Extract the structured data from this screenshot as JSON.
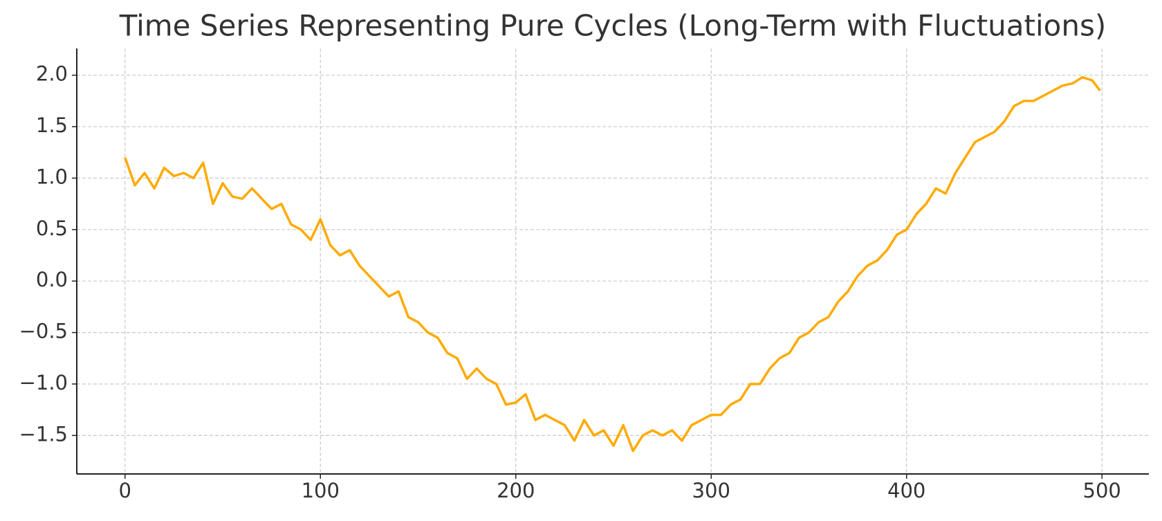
{
  "chart_data": {
    "type": "line",
    "title": "Time Series Representing Pure Cycles (Long-Term with Fluctuations)",
    "x": [
      0,
      5,
      10,
      15,
      20,
      25,
      30,
      35,
      40,
      45,
      50,
      55,
      60,
      65,
      70,
      75,
      80,
      85,
      90,
      95,
      100,
      105,
      110,
      115,
      120,
      125,
      130,
      135,
      140,
      145,
      150,
      155,
      160,
      165,
      170,
      175,
      180,
      185,
      190,
      195,
      200,
      205,
      210,
      215,
      220,
      225,
      230,
      235,
      240,
      245,
      250,
      255,
      260,
      265,
      270,
      275,
      280,
      285,
      290,
      295,
      300,
      305,
      310,
      315,
      320,
      325,
      330,
      335,
      340,
      345,
      350,
      355,
      360,
      365,
      370,
      375,
      380,
      385,
      390,
      395,
      400,
      405,
      410,
      415,
      420,
      425,
      430,
      435,
      440,
      445,
      450,
      455,
      460,
      465,
      470,
      475,
      480,
      485,
      490,
      495,
      499
    ],
    "series": [
      {
        "color": "#ffaa00",
        "values": [
          1.2,
          0.93,
          1.05,
          0.9,
          1.1,
          1.02,
          1.05,
          1.0,
          1.15,
          0.75,
          0.95,
          0.82,
          0.8,
          0.9,
          0.8,
          0.7,
          0.75,
          0.55,
          0.5,
          0.4,
          0.6,
          0.35,
          0.25,
          0.3,
          0.15,
          0.05,
          -0.05,
          -0.15,
          -0.1,
          -0.35,
          -0.4,
          -0.5,
          -0.55,
          -0.7,
          -0.75,
          -0.95,
          -0.85,
          -0.95,
          -1.0,
          -1.2,
          -1.18,
          -1.1,
          -1.35,
          -1.3,
          -1.35,
          -1.4,
          -1.55,
          -1.35,
          -1.5,
          -1.45,
          -1.6,
          -1.4,
          -1.65,
          -1.5,
          -1.45,
          -1.5,
          -1.45,
          -1.55,
          -1.4,
          -1.35,
          -1.3,
          -1.3,
          -1.2,
          -1.15,
          -1.0,
          -1.0,
          -0.85,
          -0.75,
          -0.7,
          -0.55,
          -0.5,
          -0.4,
          -0.35,
          -0.2,
          -0.1,
          0.05,
          0.15,
          0.2,
          0.3,
          0.45,
          0.5,
          0.65,
          0.75,
          0.9,
          0.85,
          1.05,
          1.2,
          1.35,
          1.4,
          1.45,
          1.55,
          1.7,
          1.75,
          1.75,
          1.8,
          1.85,
          1.9,
          1.92,
          1.98,
          1.95,
          1.85
        ]
      }
    ],
    "xlim": [
      -24.7,
      524
    ],
    "ylim": [
      -1.874,
      2.26
    ],
    "xticks": [
      0,
      100,
      200,
      300,
      400,
      500
    ],
    "yticks": [
      {
        "value": -1.5,
        "label": "−1.5"
      },
      {
        "value": -1,
        "label": "−1.0"
      },
      {
        "value": -0.5,
        "label": "−0.5"
      },
      {
        "value": 0,
        "label": "0.0"
      },
      0.5,
      {
        "value": 1,
        "label": "1.0"
      },
      1.5,
      {
        "value": 2,
        "label": "2.0"
      }
    ],
    "grid": true
  }
}
